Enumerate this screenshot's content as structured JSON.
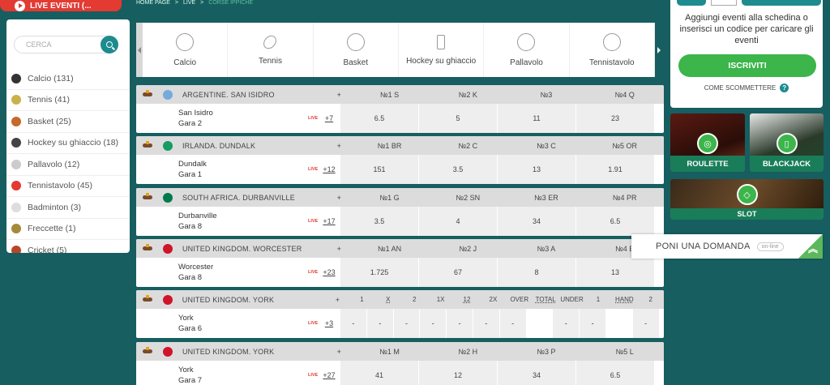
{
  "live_button": "LIVE EVENTI (...",
  "sidebar": {
    "search_placeholder": "CERCA",
    "items": [
      {
        "label": "Calcio (131)",
        "color": "#333333"
      },
      {
        "label": "Tennis (41)",
        "color": "#c9b24a"
      },
      {
        "label": "Basket (25)",
        "color": "#c46a2a"
      },
      {
        "label": "Hockey su ghiaccio (18)",
        "color": "#444444"
      },
      {
        "label": "Pallavolo (12)",
        "color": "#cccccc"
      },
      {
        "label": "Tennistavolo (45)",
        "color": "#e33a32"
      },
      {
        "label": "Badminton (3)",
        "color": "#dddddd"
      },
      {
        "label": "Freccette (1)",
        "color": "#a58a3a"
      },
      {
        "label": "Cricket (5)",
        "color": "#b8462a"
      }
    ]
  },
  "breadcrumb": [
    "HOME PAGE",
    ">",
    "LIVE",
    ">",
    "CORSE IPPICHE"
  ],
  "sports_tabs": [
    "Calcio",
    "Tennis",
    "Basket",
    "Hockey su ghiaccio",
    "Pallavolo",
    "Tennistavolo"
  ],
  "races": [
    {
      "name": "ARGENTINE. SAN ISIDRO",
      "flag": "#75aadb",
      "venue": "San Isidro",
      "race": "Gara 2",
      "live": "LIVE",
      "more": "+7",
      "heads": [
        "№1 S",
        "№2 K",
        "№3",
        "№4 Q"
      ],
      "odds": [
        "6.5",
        "5",
        "11",
        "23"
      ]
    },
    {
      "name": "IRLANDA. DUNDALK",
      "flag": "#169b62",
      "venue": "Dundalk",
      "race": "Gara 1",
      "live": "LIVE",
      "more": "+12",
      "heads": [
        "№1 BR",
        "№2 C",
        "№3 C",
        "№5 OR"
      ],
      "odds": [
        "151",
        "3.5",
        "13",
        "1.91"
      ]
    },
    {
      "name": "SOUTH AFRICA. DURBANVILLE",
      "flag": "#007a4d",
      "venue": "Durbanville",
      "race": "Gara 8",
      "live": "LIVE",
      "more": "+17",
      "heads": [
        "№1 G",
        "№2 SN",
        "№3 ER",
        "№4 PR"
      ],
      "odds": [
        "3.5",
        "4",
        "34",
        "6.5"
      ]
    },
    {
      "name": "UNITED KINGDOM. WORCESTER",
      "flag": "#cf142b",
      "venue": "Worcester",
      "race": "Gara 8",
      "live": "LIVE",
      "more": "+23",
      "heads": [
        "№1 AN",
        "№2 J",
        "№3 A",
        "№4 E"
      ],
      "odds": [
        "1.725",
        "67",
        "8",
        "13"
      ]
    }
  ],
  "york_grid": {
    "name": "UNITED KINGDOM. YORK",
    "flag": "#cf142b",
    "venue": "York",
    "race": "Gara 6",
    "live": "LIVE",
    "more": "+3",
    "heads": [
      "1",
      "X",
      "2",
      "1X",
      "12",
      "2X",
      "OVER",
      "TOTAL",
      "UNDER",
      "1",
      "HAND",
      "2"
    ],
    "values": [
      "-",
      "-",
      "-",
      "-",
      "-",
      "-",
      "-",
      "",
      "-",
      "-",
      "",
      "-"
    ]
  },
  "york_last": {
    "name": "UNITED KINGDOM. YORK",
    "flag": "#cf142b",
    "venue": "York",
    "race": "Gara 7",
    "live": "LIVE",
    "more": "+27",
    "heads": [
      "№1 M",
      "№2 H",
      "№3 P",
      "№5 L"
    ],
    "odds": [
      "41",
      "12",
      "34",
      "6.5"
    ]
  },
  "right_panel": {
    "text": "Aggiungi eventi alla schedina o inserisci un codice per caricare gli eventi",
    "iscriviti": "ISCRIVITI",
    "come": "COME SCOMMETTERE"
  },
  "games": [
    "ROULETTE",
    "BLACKJACK",
    "SLOT"
  ],
  "ask": {
    "label": "PONI UNA DOMANDA",
    "status": "on-line"
  }
}
